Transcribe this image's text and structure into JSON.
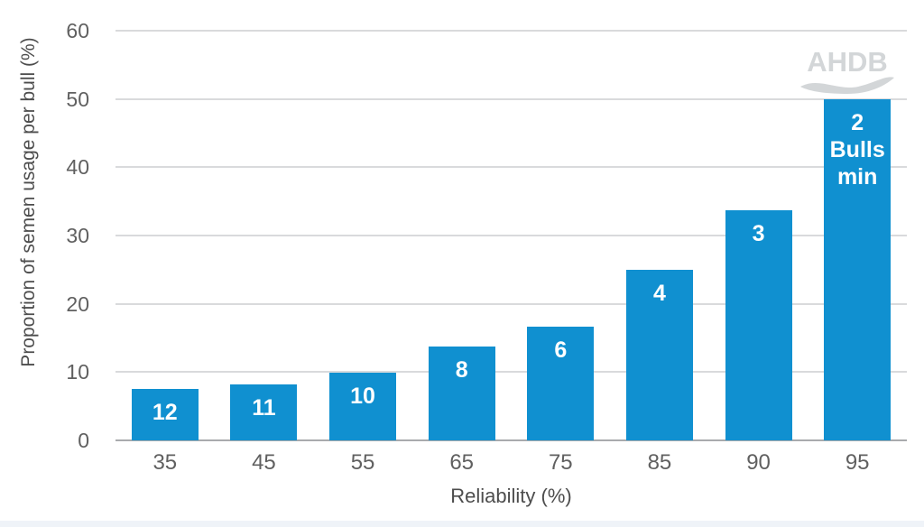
{
  "watermark": "AHDB",
  "chart_data": {
    "type": "bar",
    "title": "",
    "xlabel": "Reliability (%)",
    "ylabel": "Proportion of semen usage per bull (%)",
    "categories": [
      "35",
      "45",
      "55",
      "65",
      "75",
      "85",
      "90",
      "95"
    ],
    "values": [
      7.5,
      8.2,
      9.9,
      13.8,
      16.7,
      25,
      33.7,
      50
    ],
    "bar_labels": [
      [
        "12"
      ],
      [
        "11"
      ],
      [
        "10"
      ],
      [
        "8"
      ],
      [
        "6"
      ],
      [
        "4"
      ],
      [
        "3"
      ],
      [
        "2",
        "Bulls",
        "min"
      ]
    ],
    "ylim": [
      0,
      60
    ],
    "yticks": [
      0,
      10,
      20,
      30,
      40,
      50,
      60
    ],
    "grid": "horizontal",
    "legend": "none",
    "colors": {
      "bar": "#1090d0",
      "bar_label": "#ffffff",
      "gridline": "#d9dadc",
      "axis_line": "#a9abad",
      "tick_text": "#606060",
      "axis_title": "#4d4d4d",
      "watermark": "#d3d6d8",
      "footer_strip": "#eff3f8"
    }
  }
}
